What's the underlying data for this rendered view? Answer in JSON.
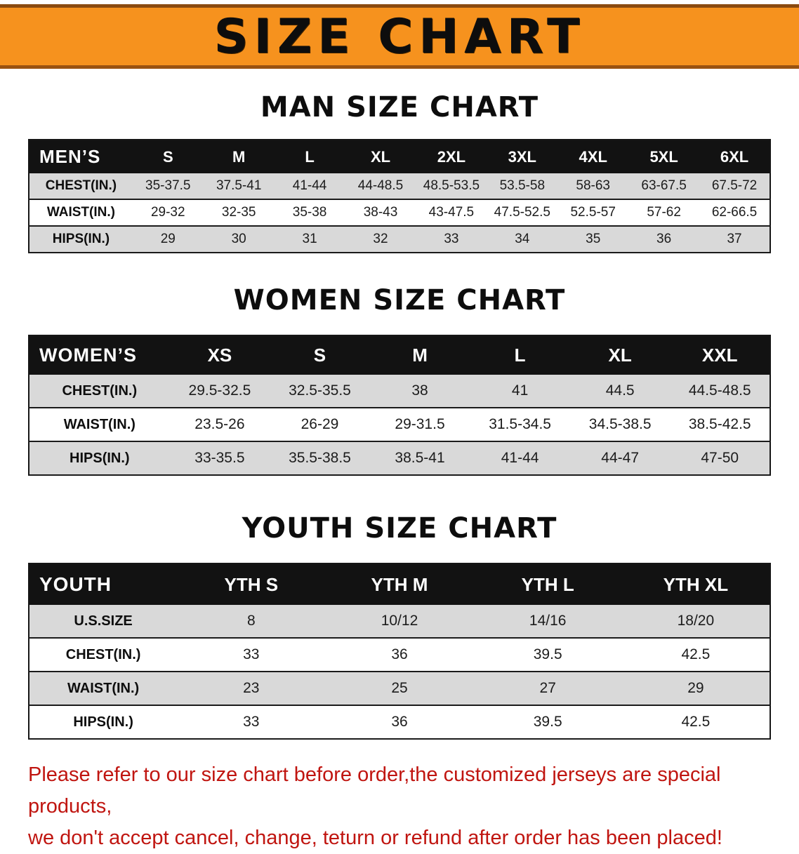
{
  "banner": {
    "title": "SIZE CHART",
    "bg_color": "#f6921e",
    "text_color": "#0d0d0d"
  },
  "colors": {
    "table_header_bg": "#121212",
    "table_header_text": "#ffffff",
    "row_shade": "#d9d9d9",
    "footer_text": "#c01510"
  },
  "sections": [
    {
      "heading": "MAN SIZE CHART",
      "table": {
        "header": [
          "MEN’S",
          "S",
          "M",
          "L",
          "XL",
          "2XL",
          "3XL",
          "4XL",
          "5XL",
          "6XL"
        ],
        "rows": [
          [
            "CHEST(IN.)",
            "35-37.5",
            "37.5-41",
            "41-44",
            "44-48.5",
            "48.5-53.5",
            "53.5-58",
            "58-63",
            "63-67.5",
            "67.5-72"
          ],
          [
            "WAIST(IN.)",
            "29-32",
            "32-35",
            "35-38",
            "38-43",
            "43-47.5",
            "47.5-52.5",
            "52.5-57",
            "57-62",
            "62-66.5"
          ],
          [
            "HIPS(IN.)",
            "29",
            "30",
            "31",
            "32",
            "33",
            "34",
            "35",
            "36",
            "37"
          ]
        ]
      }
    },
    {
      "heading": "WOMEN SIZE CHART",
      "table": {
        "header": [
          "WOMEN’S",
          "XS",
          "S",
          "M",
          "L",
          "XL",
          "XXL"
        ],
        "rows": [
          [
            "CHEST(IN.)",
            "29.5-32.5",
            "32.5-35.5",
            "38",
            "41",
            "44.5",
            "44.5-48.5"
          ],
          [
            "WAIST(IN.)",
            "23.5-26",
            "26-29",
            "29-31.5",
            "31.5-34.5",
            "34.5-38.5",
            "38.5-42.5"
          ],
          [
            "HIPS(IN.)",
            "33-35.5",
            "35.5-38.5",
            "38.5-41",
            "41-44",
            "44-47",
            "47-50"
          ]
        ]
      }
    },
    {
      "heading": "YOUTH SIZE CHART",
      "table": {
        "header": [
          "YOUTH",
          "YTH S",
          "YTH M",
          "YTH L",
          "YTH XL"
        ],
        "rows": [
          [
            "U.S.SIZE",
            "8",
            "10/12",
            "14/16",
            "18/20"
          ],
          [
            "CHEST(IN.)",
            "33",
            "36",
            "39.5",
            "42.5"
          ],
          [
            "WAIST(IN.)",
            "23",
            "25",
            "27",
            "29"
          ],
          [
            "HIPS(IN.)",
            "33",
            "36",
            "39.5",
            "42.5"
          ]
        ]
      }
    }
  ],
  "footer": {
    "line1": "Please refer to our size chart before order,the customized jerseys are special products,",
    "line2": "we don't accept cancel, change, teturn or refund after order has been placed!"
  }
}
